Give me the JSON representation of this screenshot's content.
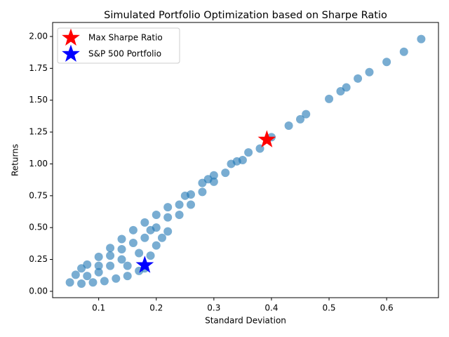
{
  "chart_data": {
    "type": "scatter",
    "title": "Simulated Portfolio Optimization based on Sharpe Ratio",
    "x_label": "Standard Deviation",
    "y_label": "Returns",
    "xlim": [
      0.02,
      0.69
    ],
    "ylim": [
      -0.05,
      2.11
    ],
    "xticks": [
      0.1,
      0.2,
      0.3,
      0.4,
      0.5,
      0.6
    ],
    "yticks": [
      {
        "value": 0,
        "label": "0.00"
      },
      {
        "value": 0.25,
        "label": "0.25"
      },
      {
        "value": 0.5,
        "label": "0.50"
      },
      {
        "value": 0.75,
        "label": "0.75"
      },
      {
        "value": 1,
        "label": "1.00"
      },
      {
        "value": 1.25,
        "label": "1.25"
      },
      {
        "value": 1.5,
        "label": "1.50"
      },
      {
        "value": 1.75,
        "label": "1.75"
      },
      {
        "value": 2,
        "label": "2.00"
      }
    ],
    "legend": "upper left",
    "points": {
      "color": "#1f77b4",
      "x": [
        0.05,
        0.06,
        0.07,
        0.08,
        0.1,
        0.12,
        0.14,
        0.16,
        0.18,
        0.2,
        0.22,
        0.25,
        0.28,
        0.3,
        0.33,
        0.36,
        0.4,
        0.43,
        0.46,
        0.5,
        0.53,
        0.55,
        0.57,
        0.6,
        0.63,
        0.66,
        0.07,
        0.09,
        0.11,
        0.13,
        0.15,
        0.17,
        0.18,
        0.19,
        0.2,
        0.21,
        0.22,
        0.24,
        0.26,
        0.28,
        0.3,
        0.32,
        0.35,
        0.38,
        0.08,
        0.1,
        0.1,
        0.12,
        0.12,
        0.14,
        0.14,
        0.15,
        0.16,
        0.17,
        0.18,
        0.19,
        0.2,
        0.22,
        0.24,
        0.26,
        0.29,
        0.34,
        0.45,
        0.52
      ],
      "y": [
        0.07,
        0.13,
        0.18,
        0.21,
        0.27,
        0.34,
        0.41,
        0.48,
        0.54,
        0.6,
        0.66,
        0.75,
        0.85,
        0.91,
        1.0,
        1.09,
        1.21,
        1.3,
        1.39,
        1.51,
        1.6,
        1.67,
        1.72,
        1.8,
        1.88,
        1.98,
        0.06,
        0.07,
        0.08,
        0.1,
        0.12,
        0.16,
        0.18,
        0.28,
        0.36,
        0.42,
        0.47,
        0.6,
        0.68,
        0.78,
        0.86,
        0.93,
        1.03,
        1.12,
        0.12,
        0.15,
        0.2,
        0.2,
        0.28,
        0.25,
        0.33,
        0.2,
        0.38,
        0.3,
        0.42,
        0.48,
        0.5,
        0.58,
        0.68,
        0.76,
        0.88,
        1.02,
        1.35,
        1.57
      ]
    },
    "series": [
      {
        "name": "Max Sharpe Ratio",
        "color": "#ff0000",
        "x": [
          0.392
        ],
        "values": [
          1.19
        ]
      },
      {
        "name": "S&P 500 Portfolio",
        "color": "#0000ff",
        "x": [
          0.18
        ],
        "values": [
          0.205
        ]
      }
    ]
  }
}
